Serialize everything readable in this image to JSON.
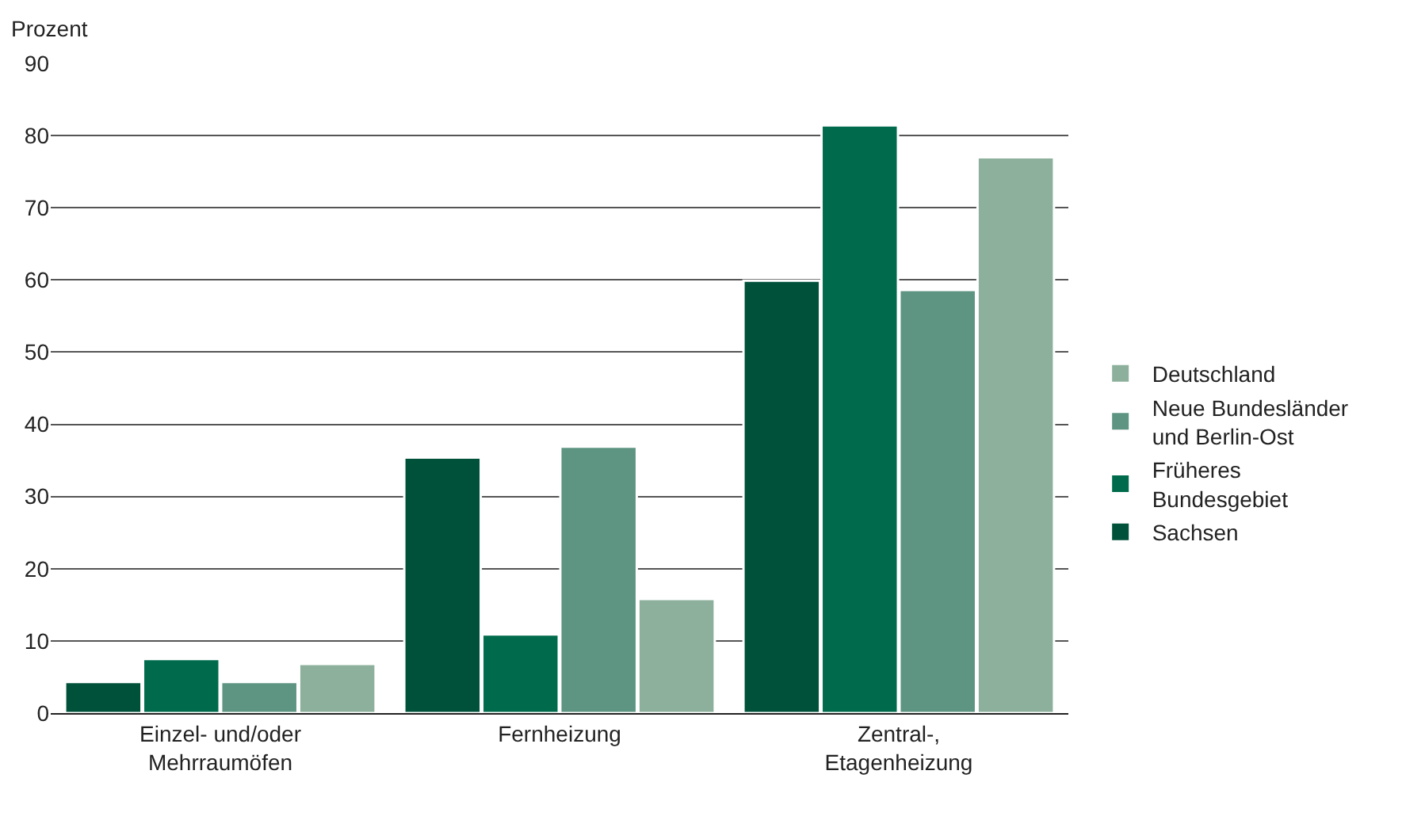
{
  "chart_data": {
    "type": "bar",
    "ylabel": "Prozent",
    "categories": [
      "Einzel- und/oder Mehrraumöfen",
      "Fernheizung",
      "Zentral-, Etagenheizung"
    ],
    "series": [
      {
        "name": "Sachsen",
        "color": "#00513a",
        "values": [
          4.3,
          35.4,
          59.9
        ]
      },
      {
        "name": "Früheres Bundesgebiet",
        "color": "#006b4c",
        "values": [
          7.5,
          10.9,
          81.4
        ]
      },
      {
        "name": "Neue Bundesländer und Berlin-Ost",
        "color": "#5e9482",
        "values": [
          4.3,
          36.9,
          58.6
        ]
      },
      {
        "name": "Deutschland",
        "color": "#8db09c",
        "values": [
          6.8,
          15.8,
          77.0
        ]
      }
    ],
    "ylim": [
      0,
      90
    ],
    "yticks": [
      0,
      10,
      20,
      30,
      40,
      50,
      60,
      70,
      80,
      90
    ],
    "grid": "y",
    "legend": "right"
  }
}
